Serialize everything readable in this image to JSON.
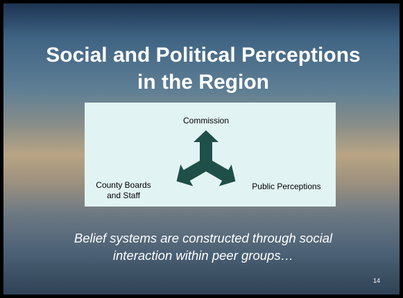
{
  "title_lines": [
    "Social and Political Perceptions",
    "in the Region"
  ],
  "diagram": {
    "nodes": [
      {
        "label_lines": [
          "Commission"
        ]
      },
      {
        "label_lines": [
          "County Boards",
          "and Staff"
        ]
      },
      {
        "label_lines": [
          "Public Perceptions"
        ]
      }
    ]
  },
  "caption_lines": [
    "Belief systems are constructed through social",
    "interaction within peer groups…"
  ],
  "page_number": "14"
}
